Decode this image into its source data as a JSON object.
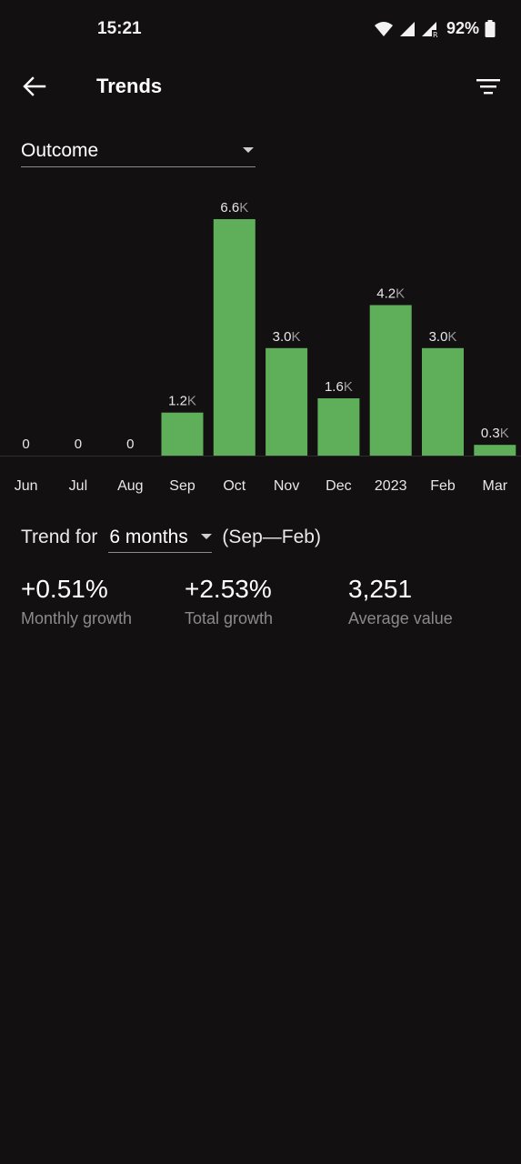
{
  "status_bar": {
    "time": "15:21",
    "battery": "92%",
    "icons": [
      "wifi-icon",
      "signal-icon",
      "signal-roaming-icon",
      "battery-icon"
    ]
  },
  "app_bar": {
    "title": "Trends",
    "back_icon": "arrow-left-icon",
    "filter_icon": "filter-icon"
  },
  "metric_select": {
    "value": "Outcome"
  },
  "chart_data": {
    "type": "bar",
    "categories": [
      "Jun",
      "Jul",
      "Aug",
      "Sep",
      "Oct",
      "Nov",
      "Dec",
      "2023",
      "Feb",
      "Mar"
    ],
    "values": [
      0,
      0,
      0,
      1200,
      6600,
      3000,
      1600,
      4200,
      3000,
      300
    ],
    "value_labels": [
      "0",
      "0",
      "0",
      "1.2",
      "6.6",
      "3.0",
      "1.6",
      "4.2",
      "3.0",
      "0.3"
    ],
    "value_suffixes": [
      "",
      "",
      "",
      "K",
      "K",
      "K",
      "K",
      "K",
      "K",
      "K"
    ],
    "bar_color": "#5fae5a",
    "xlabel": "",
    "ylabel": "",
    "ylim": [
      0,
      6600
    ],
    "grid": false,
    "legend": "none"
  },
  "trend": {
    "prefix": "Trend for",
    "period": "6 months",
    "range": "(Sep—Feb)"
  },
  "stats": [
    {
      "value": "+0.51%",
      "label": "Monthly growth"
    },
    {
      "value": "+2.53%",
      "label": "Total growth"
    },
    {
      "value": "3,251",
      "label": "Average value"
    }
  ]
}
